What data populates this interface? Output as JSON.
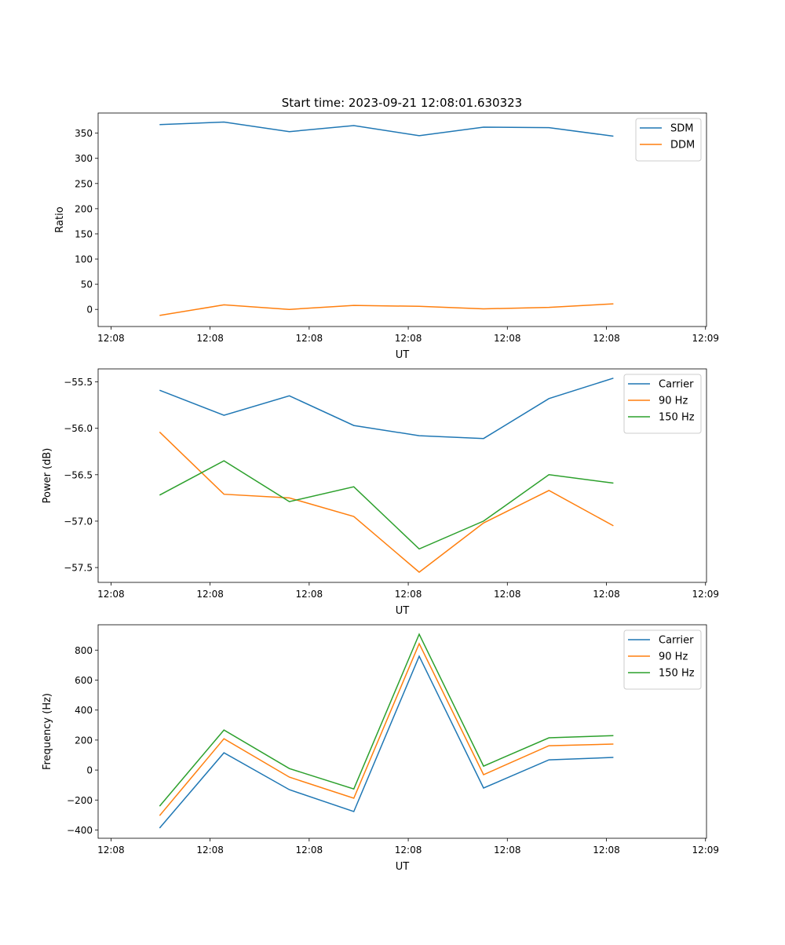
{
  "title": "Start time: 2023-09-21 12:08:01.630323",
  "colors": {
    "blue": "#1f77b4",
    "orange": "#ff7f0e",
    "green": "#2ca02c"
  },
  "chart_data": [
    {
      "type": "line",
      "xlabel": "UT",
      "ylabel": "Ratio",
      "x_unit": "seconds after 12:08:00",
      "x": [
        4.9,
        11.4,
        18.0,
        24.5,
        31.1,
        37.6,
        44.2,
        50.7
      ],
      "xlim": [
        -1.3,
        60.1
      ],
      "xticks": [
        0,
        10,
        20,
        30,
        40,
        50,
        60
      ],
      "xtick_labels": [
        "12:08",
        "12:08",
        "12:08",
        "12:08",
        "12:08",
        "12:08",
        "12:09"
      ],
      "ylim": [
        -34,
        390
      ],
      "yticks": [
        0,
        50,
        100,
        150,
        200,
        250,
        300,
        350
      ],
      "ytick_labels": [
        "0",
        "50",
        "100",
        "150",
        "200",
        "250",
        "300",
        "350"
      ],
      "legend": "top-right",
      "series": [
        {
          "name": "SDM",
          "color": "#1f77b4",
          "values": [
            367,
            372,
            353,
            365,
            345,
            362,
            361,
            344
          ]
        },
        {
          "name": "DDM",
          "color": "#ff7f0e",
          "values": [
            -12,
            9,
            0,
            8,
            6,
            1,
            4,
            11
          ]
        }
      ]
    },
    {
      "type": "line",
      "xlabel": "UT",
      "ylabel": "Power (dB)",
      "x_unit": "seconds after 12:08:00",
      "x": [
        4.9,
        11.4,
        18.0,
        24.5,
        31.1,
        37.6,
        44.2,
        50.7
      ],
      "xlim": [
        -1.3,
        60.1
      ],
      "xticks": [
        0,
        10,
        20,
        30,
        40,
        50,
        60
      ],
      "xtick_labels": [
        "12:08",
        "12:08",
        "12:08",
        "12:08",
        "12:08",
        "12:08",
        "12:09"
      ],
      "ylim": [
        -57.66,
        -55.36
      ],
      "yticks": [
        -55.5,
        -56.0,
        -56.5,
        -57.0,
        -57.5
      ],
      "ytick_labels": [
        "−55.5",
        "−56.0",
        "−56.5",
        "−57.0",
        "−57.5"
      ],
      "legend": "top-right",
      "series": [
        {
          "name": "Carrier",
          "color": "#1f77b4",
          "values": [
            -55.59,
            -55.86,
            -55.65,
            -55.97,
            -56.08,
            -56.11,
            -55.68,
            -55.46
          ]
        },
        {
          "name": "90 Hz",
          "color": "#ff7f0e",
          "values": [
            -56.04,
            -56.71,
            -56.75,
            -56.95,
            -57.55,
            -57.02,
            -56.67,
            -57.05
          ]
        },
        {
          "name": "150 Hz",
          "color": "#2ca02c",
          "values": [
            -56.72,
            -56.35,
            -56.79,
            -56.63,
            -57.3,
            -57.0,
            -56.5,
            -56.59
          ]
        }
      ]
    },
    {
      "type": "line",
      "xlabel": "UT",
      "ylabel": "Frequency (Hz)",
      "x_unit": "seconds after 12:08:00",
      "x": [
        4.9,
        11.4,
        18.0,
        24.5,
        31.1,
        37.6,
        44.2,
        50.7
      ],
      "xlim": [
        -1.3,
        60.1
      ],
      "xticks": [
        0,
        10,
        20,
        30,
        40,
        50,
        60
      ],
      "xtick_labels": [
        "12:08",
        "12:08",
        "12:08",
        "12:08",
        "12:08",
        "12:08",
        "12:09"
      ],
      "ylim": [
        -455,
        969
      ],
      "yticks": [
        -400,
        -200,
        0,
        200,
        400,
        600,
        800
      ],
      "ytick_labels": [
        "−400",
        "−200",
        "0",
        "200",
        "400",
        "600",
        "800"
      ],
      "legend": "top-right",
      "series": [
        {
          "name": "Carrier",
          "color": "#1f77b4",
          "values": [
            -387,
            115,
            -131,
            -277,
            759,
            -120,
            68,
            84
          ]
        },
        {
          "name": "90 Hz",
          "color": "#ff7f0e",
          "values": [
            -304,
            209,
            -47,
            -188,
            843,
            -31,
            162,
            173
          ]
        },
        {
          "name": "150 Hz",
          "color": "#2ca02c",
          "values": [
            -241,
            267,
            10,
            -126,
            906,
            26,
            215,
            230
          ]
        }
      ]
    }
  ]
}
